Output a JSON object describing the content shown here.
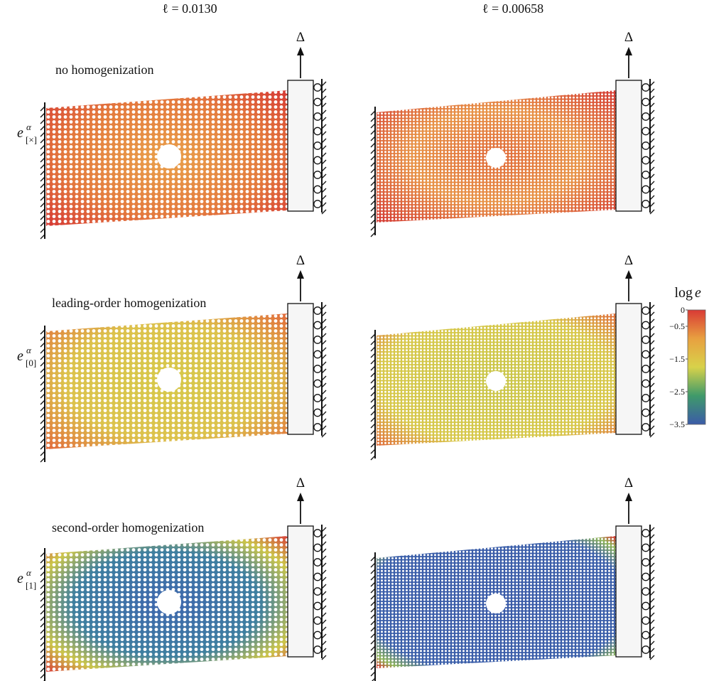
{
  "columns": [
    {
      "label": "ℓ = 0.0130"
    },
    {
      "label": "ℓ = 0.00658"
    }
  ],
  "rows": [
    {
      "symbol": "e",
      "superscript": "α",
      "subscript": "[×]",
      "caption": "no homogenization"
    },
    {
      "symbol": "e",
      "superscript": "α",
      "subscript": "[0]",
      "caption": "leading-order homogenization"
    },
    {
      "symbol": "e",
      "superscript": "α",
      "subscript": "[1]",
      "caption": "second-order homogenization"
    }
  ],
  "load_label": "Δ",
  "colorbar": {
    "title_function": "log",
    "title_variable": "e",
    "range": [
      -3.5,
      0
    ],
    "colors": [
      "#3b5ba8",
      "#3f9a6a",
      "#d8d24a",
      "#e8a040",
      "#d93a35"
    ],
    "ticks": [
      0,
      {
        "value": -0.5,
        "label": "−0.5"
      },
      {
        "value": -1.5,
        "label": "−1.5"
      },
      {
        "value": -2.5,
        "label": "−2.5"
      },
      {
        "value": -3.5,
        "label": "−3.5"
      }
    ]
  }
}
